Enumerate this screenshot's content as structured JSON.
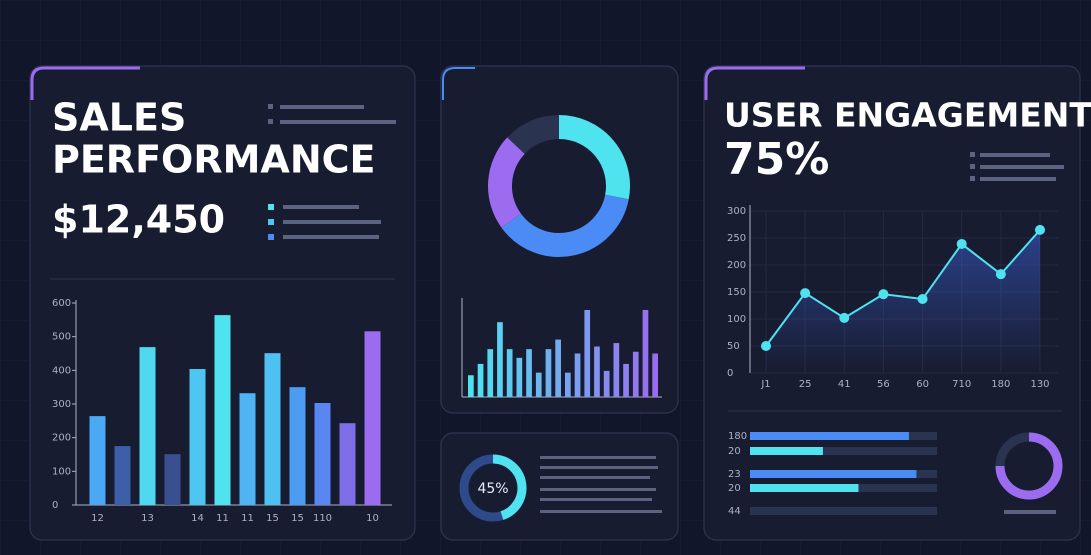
{
  "sales_panel": {
    "title_lines": [
      "SALES",
      "PERFORMANCE"
    ],
    "total": "$12,450",
    "chart": {
      "type": "bar",
      "categories": [
        "12",
        null,
        "13",
        null,
        "14",
        "11",
        "11",
        "15",
        "15",
        "110",
        null,
        "10"
      ],
      "values": [
        264,
        175,
        469,
        151,
        404,
        564,
        332,
        451,
        350,
        303,
        243,
        516
      ],
      "colors": [
        "#4aa8f5",
        "#3d5fa8",
        "#4fd8f0",
        "#3a4f90",
        "#4fc6f2",
        "#4fe3f0",
        "#4fb4f3",
        "#4fc0f2",
        "#4c9cf4",
        "#5a86f2",
        "#7e6ee8",
        "#9b6cf0"
      ],
      "ylim": [
        0,
        600
      ],
      "yticks": [
        0,
        100,
        200,
        300,
        400,
        500,
        600
      ]
    }
  },
  "donut_panel": {
    "chart": {
      "type": "pie",
      "values": [
        28,
        37,
        22,
        13
      ],
      "colors": [
        "#4fe3f0",
        "#4b8bf5",
        "#9b6cf0",
        "#2a3350"
      ]
    }
  },
  "activity_panel": {
    "chart": {
      "type": "bar",
      "values": [
        25,
        38,
        55,
        86,
        55,
        45,
        55,
        28,
        55,
        66,
        28,
        50,
        100,
        58,
        30,
        62,
        38,
        52,
        100,
        50
      ],
      "gradient": [
        "#4fe3f0",
        "#9b6cf0"
      ],
      "ylim": [
        0,
        100
      ]
    }
  },
  "progress_panel": {
    "values": [
      45
    ],
    "value_labels": [
      "45%"
    ],
    "colors": [
      "#4fe3f0",
      "#2f4a8a"
    ]
  },
  "engagement_panel": {
    "title": "USER ENGAGEMENT",
    "rate": "75%",
    "chart": {
      "type": "line",
      "categories": [
        "J1",
        "25",
        "41",
        "56",
        "60",
        "710",
        "180",
        "130"
      ],
      "values": [
        50,
        148,
        102,
        146,
        137,
        239,
        183,
        265
      ],
      "color": "#4fe3f0",
      "ylim": [
        0,
        300
      ],
      "yticks": [
        0,
        50,
        100,
        150,
        200,
        250,
        300
      ],
      "grid": true
    },
    "bars": {
      "labels": [
        "180",
        "20",
        "23",
        "20",
        "44"
      ],
      "values": [
        85,
        39,
        89,
        58,
        0
      ],
      "colors": [
        "#4b8bf5",
        "#4fe3f0"
      ],
      "xlim": [
        0,
        100
      ]
    },
    "ring": {
      "values": [
        75
      ],
      "colors": [
        "#9b6cf0",
        "#2a3350"
      ]
    }
  }
}
